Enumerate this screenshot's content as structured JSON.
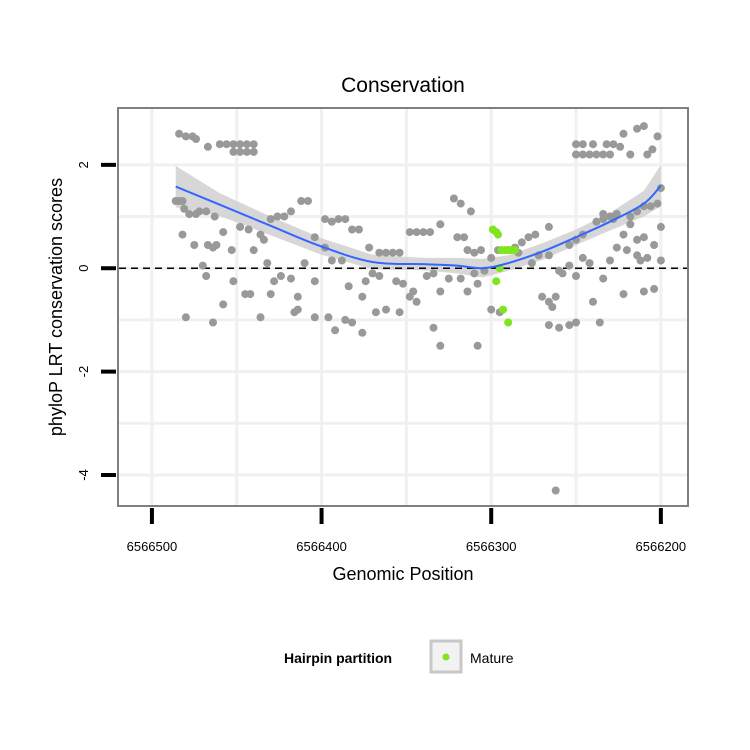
{
  "chart_data": {
    "type": "scatter",
    "title": "Conservation",
    "xlabel": "Genomic Position",
    "ylabel": "phyloP LRT conservation scores",
    "x_reversed": true,
    "xlim": [
      6566520,
      6566184
    ],
    "ylim": [
      -4.6,
      3.1
    ],
    "x_ticks": [
      6566500,
      6566400,
      6566300,
      6566200
    ],
    "x_tick_labels": [
      "6566500",
      "6566400",
      "6566300",
      "6566200"
    ],
    "y_ticks": [
      -4,
      -2,
      0,
      2
    ],
    "y_tick_labels": [
      "-4",
      "-2",
      "0",
      "2"
    ],
    "reference_line": {
      "y": 0,
      "style": "dashed",
      "color": "#000000"
    },
    "grid": true,
    "legend": {
      "title": "Hairpin partition",
      "position": "bottom",
      "entries": [
        {
          "label": "Mature",
          "color": "#7FE51C"
        }
      ]
    },
    "colors": {
      "other": "#999999",
      "mature": "#7FE51C",
      "smooth": "#3366FF",
      "band": "#D0D0D0"
    },
    "series": [
      {
        "name": "",
        "color": "#999999",
        "points": [
          [
            6566484,
            2.6
          ],
          [
            6566480,
            2.55
          ],
          [
            6566476,
            2.55
          ],
          [
            6566474,
            2.5
          ],
          [
            6566467,
            2.35
          ],
          [
            6566460,
            2.4
          ],
          [
            6566456,
            2.4
          ],
          [
            6566452,
            2.4
          ],
          [
            6566448,
            2.4
          ],
          [
            6566444,
            2.4
          ],
          [
            6566440,
            2.4
          ],
          [
            6566452,
            2.25
          ],
          [
            6566448,
            2.25
          ],
          [
            6566444,
            2.25
          ],
          [
            6566440,
            2.25
          ],
          [
            6566486,
            1.3
          ],
          [
            6566484,
            1.3
          ],
          [
            6566482,
            1.3
          ],
          [
            6566481,
            1.15
          ],
          [
            6566478,
            1.05
          ],
          [
            6566474,
            1.05
          ],
          [
            6566472,
            1.1
          ],
          [
            6566468,
            1.1
          ],
          [
            6566463,
            1.0
          ],
          [
            6566458,
            0.7
          ],
          [
            6566448,
            0.8
          ],
          [
            6566443,
            0.75
          ],
          [
            6566436,
            0.65
          ],
          [
            6566434,
            0.55
          ],
          [
            6566430,
            0.95
          ],
          [
            6566426,
            1.0
          ],
          [
            6566422,
            1.0
          ],
          [
            6566418,
            1.1
          ],
          [
            6566412,
            1.3
          ],
          [
            6566408,
            1.3
          ],
          [
            6566404,
            0.6
          ],
          [
            6566398,
            0.95
          ],
          [
            6566394,
            0.9
          ],
          [
            6566390,
            0.95
          ],
          [
            6566386,
            0.95
          ],
          [
            6566382,
            0.75
          ],
          [
            6566378,
            0.75
          ],
          [
            6566372,
            0.4
          ],
          [
            6566366,
            0.3
          ],
          [
            6566362,
            0.3
          ],
          [
            6566358,
            0.3
          ],
          [
            6566354,
            0.3
          ],
          [
            6566348,
            0.7
          ],
          [
            6566344,
            0.7
          ],
          [
            6566340,
            0.7
          ],
          [
            6566336,
            0.7
          ],
          [
            6566330,
            0.85
          ],
          [
            6566322,
            1.35
          ],
          [
            6566318,
            1.25
          ],
          [
            6566312,
            1.1
          ],
          [
            6566320,
            0.6
          ],
          [
            6566316,
            0.6
          ],
          [
            6566314,
            0.35
          ],
          [
            6566310,
            0.3
          ],
          [
            6566306,
            0.35
          ],
          [
            6566300,
            0.2
          ],
          [
            6566296,
            0.35
          ],
          [
            6566284,
            0.3
          ],
          [
            6566276,
            0.1
          ],
          [
            6566272,
            0.25
          ],
          [
            6566266,
            0.25
          ],
          [
            6566260,
            -0.05
          ],
          [
            6566482,
            0.65
          ],
          [
            6566475,
            0.45
          ],
          [
            6566470,
            0.05
          ],
          [
            6566468,
            -0.15
          ],
          [
            6566467,
            0.45
          ],
          [
            6566464,
            0.4
          ],
          [
            6566462,
            0.45
          ],
          [
            6566453,
            0.35
          ],
          [
            6566445,
            -0.5
          ],
          [
            6566440,
            0.35
          ],
          [
            6566432,
            0.1
          ],
          [
            6566428,
            -0.25
          ],
          [
            6566418,
            -0.2
          ],
          [
            6566414,
            -0.55
          ],
          [
            6566410,
            0.1
          ],
          [
            6566404,
            -0.25
          ],
          [
            6566398,
            0.4
          ],
          [
            6566394,
            0.15
          ],
          [
            6566388,
            0.15
          ],
          [
            6566384,
            -0.35
          ],
          [
            6566376,
            -0.55
          ],
          [
            6566374,
            -0.25
          ],
          [
            6566370,
            -0.1
          ],
          [
            6566366,
            -0.15
          ],
          [
            6566356,
            -0.25
          ],
          [
            6566352,
            -0.3
          ],
          [
            6566348,
            -0.55
          ],
          [
            6566344,
            -0.65
          ],
          [
            6566338,
            -0.15
          ],
          [
            6566334,
            -0.1
          ],
          [
            6566330,
            -0.45
          ],
          [
            6566325,
            -0.2
          ],
          [
            6566318,
            -0.2
          ],
          [
            6566314,
            -0.45
          ],
          [
            6566310,
            -0.1
          ],
          [
            6566308,
            -0.3
          ],
          [
            6566304,
            -0.05
          ],
          [
            6566464,
            -1.05
          ],
          [
            6566458,
            -0.7
          ],
          [
            6566452,
            -0.25
          ],
          [
            6566442,
            -0.5
          ],
          [
            6566436,
            -0.95
          ],
          [
            6566430,
            -0.5
          ],
          [
            6566424,
            -0.15
          ],
          [
            6566416,
            -0.85
          ],
          [
            6566414,
            -0.8
          ],
          [
            6566404,
            -0.95
          ],
          [
            6566396,
            -0.95
          ],
          [
            6566392,
            -1.2
          ],
          [
            6566386,
            -1.0
          ],
          [
            6566382,
            -1.05
          ],
          [
            6566376,
            -1.25
          ],
          [
            6566368,
            -0.85
          ],
          [
            6566362,
            -0.8
          ],
          [
            6566354,
            -0.85
          ],
          [
            6566346,
            -0.45
          ],
          [
            6566334,
            -1.15
          ],
          [
            6566330,
            -1.5
          ],
          [
            6566308,
            -1.5
          ],
          [
            6566300,
            -0.8
          ],
          [
            6566295,
            -0.85
          ],
          [
            6566480,
            -0.95
          ],
          [
            6566270,
            -0.55
          ],
          [
            6566266,
            -0.65
          ],
          [
            6566264,
            -0.75
          ],
          [
            6566262,
            -0.55
          ],
          [
            6566258,
            -0.1
          ],
          [
            6566254,
            0.05
          ],
          [
            6566250,
            -0.15
          ],
          [
            6566246,
            0.2
          ],
          [
            6566242,
            0.1
          ],
          [
            6566240,
            -0.65
          ],
          [
            6566236,
            -1.05
          ],
          [
            6566234,
            -0.2
          ],
          [
            6566230,
            0.15
          ],
          [
            6566226,
            0.4
          ],
          [
            6566222,
            -0.5
          ],
          [
            6566220,
            0.35
          ],
          [
            6566214,
            0.25
          ],
          [
            6566210,
            -0.45
          ],
          [
            6566204,
            -0.4
          ],
          [
            6566200,
            0.15
          ],
          [
            6566200,
            0.8
          ],
          [
            6566208,
            0.2
          ],
          [
            6566212,
            0.15
          ],
          [
            6566266,
            -1.1
          ],
          [
            6566260,
            -1.15
          ],
          [
            6566254,
            -1.1
          ],
          [
            6566250,
            -1.05
          ],
          [
            6566262,
            -4.3
          ],
          [
            6566266,
            0.8
          ],
          [
            6566274,
            0.65
          ],
          [
            6566278,
            0.6
          ],
          [
            6566282,
            0.5
          ],
          [
            6566286,
            0.4
          ],
          [
            6566290,
            0.35
          ],
          [
            6566254,
            0.45
          ],
          [
            6566250,
            0.55
          ],
          [
            6566246,
            0.65
          ],
          [
            6566238,
            0.9
          ],
          [
            6566234,
            0.95
          ],
          [
            6566230,
            1.0
          ],
          [
            6566226,
            1.05
          ],
          [
            6566222,
            0.65
          ],
          [
            6566218,
            1.0
          ],
          [
            6566214,
            1.1
          ],
          [
            6566210,
            1.2
          ],
          [
            6566206,
            1.2
          ],
          [
            6566202,
            1.25
          ],
          [
            6566200,
            1.55
          ],
          [
            6566234,
            1.05
          ],
          [
            6566228,
            0.95
          ],
          [
            6566218,
            0.85
          ],
          [
            6566214,
            0.55
          ],
          [
            6566210,
            0.6
          ],
          [
            6566204,
            0.45
          ],
          [
            6566250,
            2.2
          ],
          [
            6566246,
            2.2
          ],
          [
            6566242,
            2.2
          ],
          [
            6566238,
            2.2
          ],
          [
            6566234,
            2.2
          ],
          [
            6566230,
            2.2
          ],
          [
            6566250,
            2.4
          ],
          [
            6566246,
            2.4
          ],
          [
            6566240,
            2.4
          ],
          [
            6566232,
            2.4
          ],
          [
            6566228,
            2.4
          ],
          [
            6566224,
            2.35
          ],
          [
            6566222,
            2.6
          ],
          [
            6566218,
            2.2
          ],
          [
            6566214,
            2.7
          ],
          [
            6566210,
            2.75
          ],
          [
            6566205,
            2.3
          ],
          [
            6566202,
            2.55
          ],
          [
            6566208,
            2.2
          ]
        ]
      },
      {
        "name": "Mature",
        "color": "#7FE51C",
        "points": [
          [
            6566299,
            0.75
          ],
          [
            6566297,
            0.7
          ],
          [
            6566296,
            0.65
          ],
          [
            6566294,
            0.35
          ],
          [
            6566292,
            0.35
          ],
          [
            6566290,
            0.35
          ],
          [
            6566288,
            0.35
          ],
          [
            6566286,
            0.35
          ],
          [
            6566295,
            0.0
          ],
          [
            6566297,
            -0.25
          ],
          [
            6566293,
            -0.8
          ],
          [
            6566290,
            -1.05
          ]
        ]
      }
    ],
    "smooth": {
      "method": "loess",
      "color": "#3366FF",
      "fit": [
        [
          6566486,
          1.58
        ],
        [
          6566460,
          1.23
        ],
        [
          6566430,
          0.82
        ],
        [
          6566400,
          0.42
        ],
        [
          6566370,
          0.12
        ],
        [
          6566340,
          0.08
        ],
        [
          6566320,
          0.05
        ],
        [
          6566305,
          0.0
        ],
        [
          6566290,
          0.1
        ],
        [
          6566270,
          0.32
        ],
        [
          6566250,
          0.6
        ],
        [
          6566230,
          0.9
        ],
        [
          6566210,
          1.25
        ],
        [
          6566200,
          1.6
        ]
      ],
      "lower": [
        [
          6566486,
          1.18
        ],
        [
          6566460,
          1.01
        ],
        [
          6566430,
          0.64
        ],
        [
          6566400,
          0.26
        ],
        [
          6566370,
          -0.02
        ],
        [
          6566340,
          -0.04
        ],
        [
          6566320,
          -0.1
        ],
        [
          6566305,
          -0.18
        ],
        [
          6566290,
          -0.05
        ],
        [
          6566270,
          0.16
        ],
        [
          6566250,
          0.45
        ],
        [
          6566230,
          0.73
        ],
        [
          6566210,
          1.0
        ],
        [
          6566200,
          1.2
        ]
      ],
      "upper": [
        [
          6566486,
          1.98
        ],
        [
          6566460,
          1.45
        ],
        [
          6566430,
          1.0
        ],
        [
          6566400,
          0.58
        ],
        [
          6566370,
          0.26
        ],
        [
          6566340,
          0.2
        ],
        [
          6566320,
          0.2
        ],
        [
          6566305,
          0.18
        ],
        [
          6566290,
          0.25
        ],
        [
          6566270,
          0.48
        ],
        [
          6566250,
          0.75
        ],
        [
          6566230,
          1.07
        ],
        [
          6566210,
          1.5
        ],
        [
          6566200,
          2.0
        ]
      ]
    }
  }
}
